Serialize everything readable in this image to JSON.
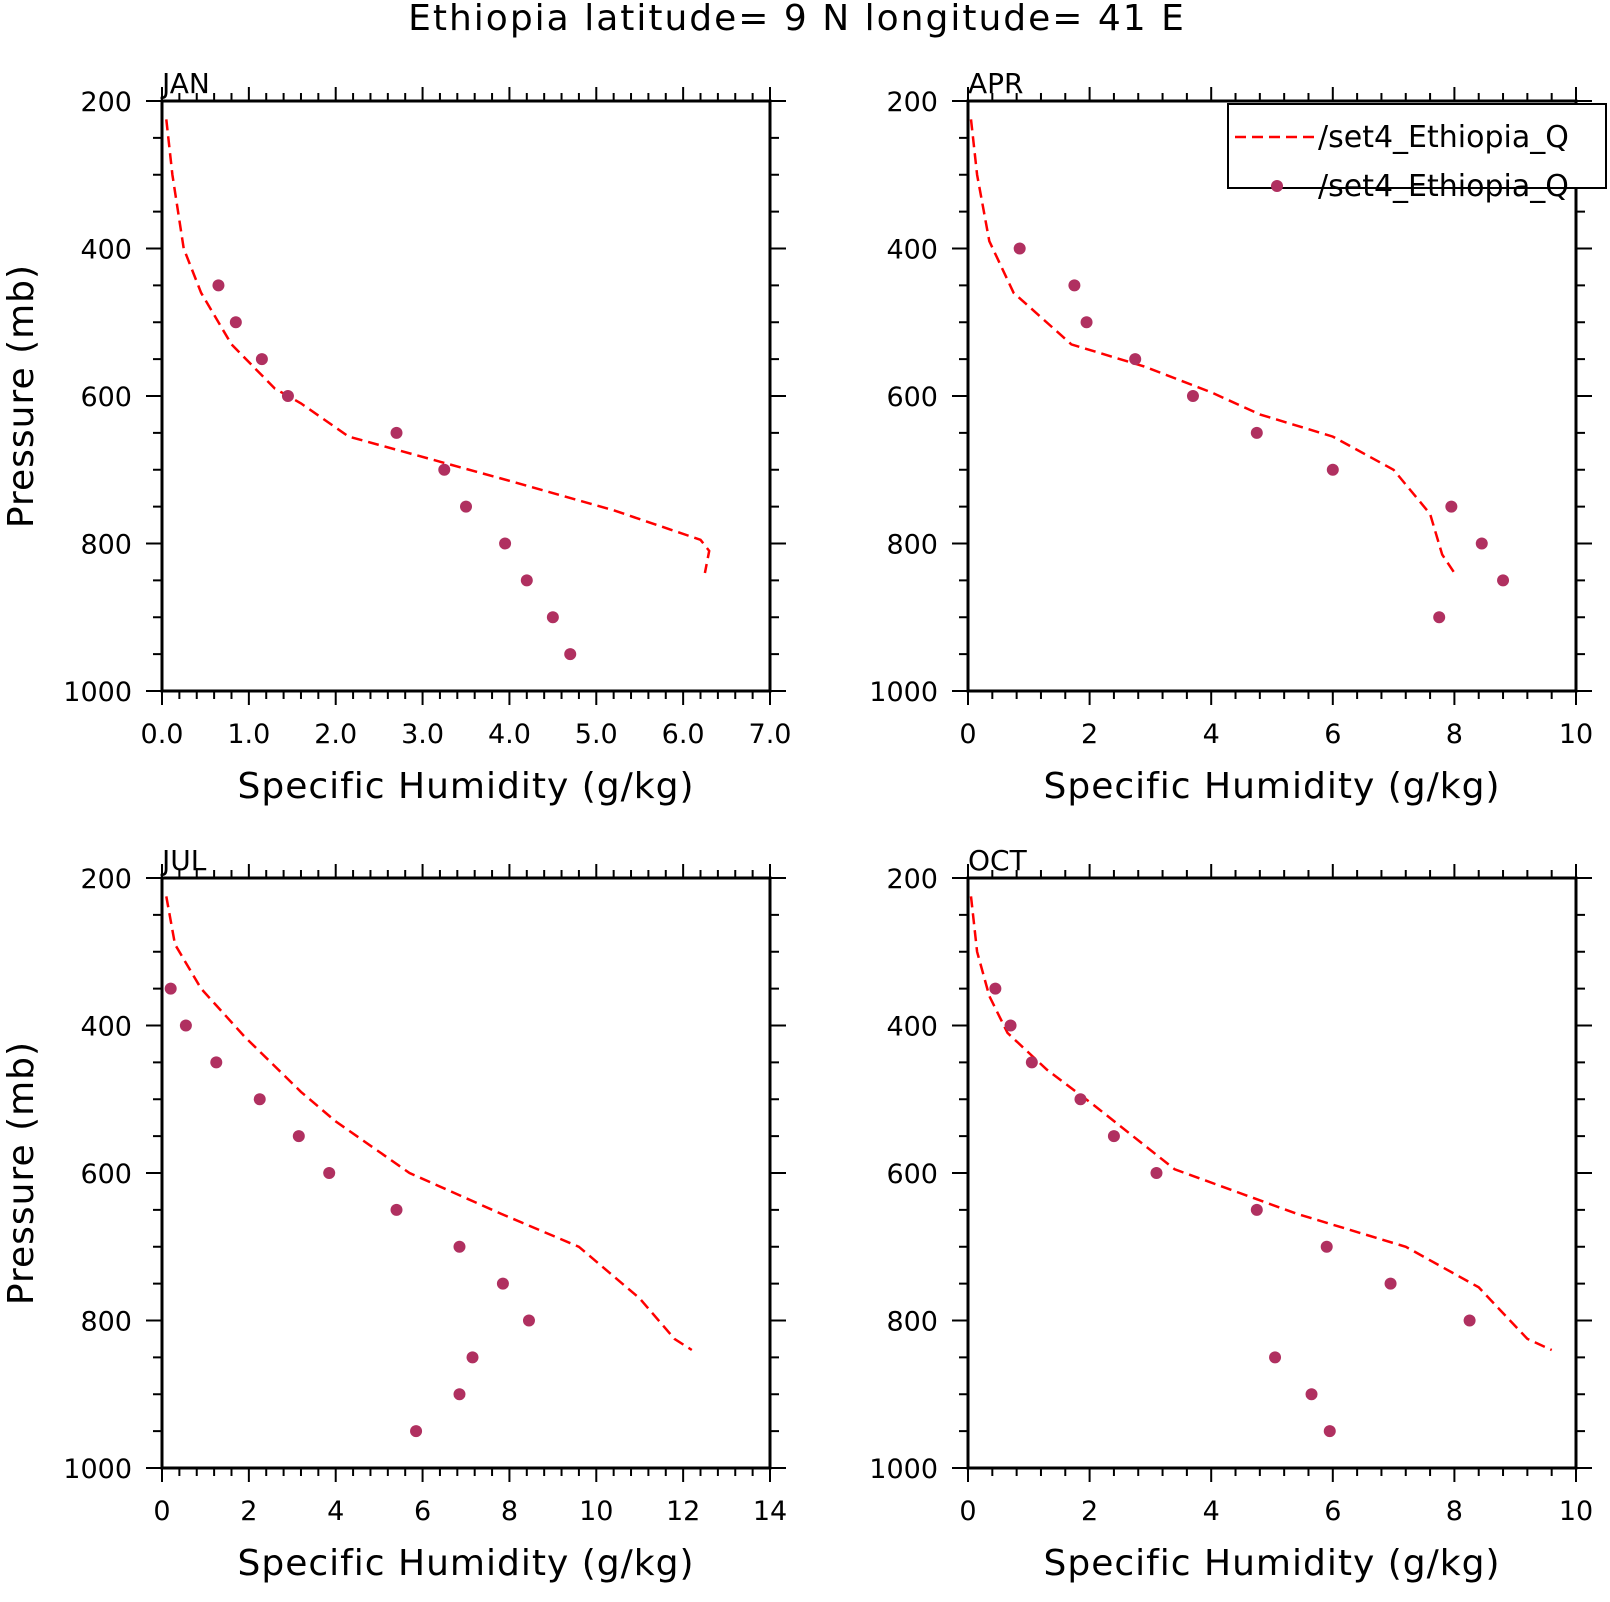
{
  "title": "Ethiopia  latitude= 9 N longitude= 41 E",
  "legend": {
    "line_label": "/set4_Ethiopia_Q",
    "dots_label": "/set4_Ethiopia_Q"
  },
  "colors": {
    "line": "#ff0000",
    "dots": "#b03060",
    "axes": "#000000"
  },
  "chart_data": [
    {
      "type": "line",
      "panel": "JAN",
      "xlabel": "Specific Humidity (g/kg)",
      "ylabel": "Pressure (mb)",
      "xlim": [
        0,
        7
      ],
      "ylim": [
        1000,
        200
      ],
      "xticks": [
        "0.0",
        "1.0",
        "2.0",
        "3.0",
        "4.0",
        "5.0",
        "6.0",
        "7.0"
      ],
      "yticks": [
        "200",
        "400",
        "600",
        "800",
        "1000"
      ],
      "xtick_values": [
        0,
        1,
        2,
        3,
        4,
        5,
        6,
        7
      ],
      "ytick_values": [
        200,
        400,
        600,
        800,
        1000
      ],
      "series": [
        {
          "style": "dashed-line",
          "x": [
            0.05,
            0.12,
            0.25,
            0.45,
            0.8,
            1.3,
            1.6,
            2.15,
            4.0,
            5.2,
            6.2,
            6.3,
            6.25
          ],
          "y": [
            225,
            300,
            400,
            460,
            530,
            590,
            610,
            655,
            715,
            755,
            795,
            810,
            840
          ]
        },
        {
          "style": "dots",
          "x": [
            0.65,
            0.85,
            1.15,
            1.45,
            2.7,
            3.25,
            3.5,
            3.95,
            4.2,
            4.5,
            4.7
          ],
          "y": [
            450,
            500,
            550,
            600,
            650,
            700,
            750,
            800,
            850,
            900,
            950
          ]
        }
      ]
    },
    {
      "type": "line",
      "panel": "APR",
      "xlabel": "Specific Humidity (g/kg)",
      "ylabel": "",
      "xlim": [
        0,
        10
      ],
      "ylim": [
        1000,
        200
      ],
      "xticks": [
        "0",
        "2",
        "4",
        "6",
        "8",
        "10"
      ],
      "yticks": [
        "200",
        "400",
        "600",
        "800",
        "1000"
      ],
      "xtick_values": [
        0,
        2,
        4,
        6,
        8,
        10
      ],
      "ytick_values": [
        200,
        400,
        600,
        800,
        1000
      ],
      "series": [
        {
          "style": "dashed-line",
          "x": [
            0.05,
            0.15,
            0.35,
            0.75,
            1.7,
            2.9,
            4.0,
            4.8,
            6.0,
            7.0,
            7.6,
            7.8,
            8.0
          ],
          "y": [
            225,
            300,
            390,
            460,
            530,
            560,
            595,
            625,
            655,
            700,
            760,
            815,
            840
          ]
        },
        {
          "style": "dots",
          "x": [
            0.85,
            1.75,
            1.95,
            2.75,
            3.7,
            4.75,
            6.0,
            7.95,
            8.45,
            8.8,
            7.75
          ],
          "y": [
            400,
            450,
            500,
            550,
            600,
            650,
            700,
            750,
            800,
            850,
            900
          ]
        }
      ]
    },
    {
      "type": "line",
      "panel": "JUL",
      "xlabel": "Specific Humidity (g/kg)",
      "ylabel": "Pressure (mb)",
      "xlim": [
        0,
        14
      ],
      "ylim": [
        1000,
        200
      ],
      "xticks": [
        "0",
        "2",
        "4",
        "6",
        "8",
        "10",
        "12",
        "14"
      ],
      "yticks": [
        "200",
        "400",
        "600",
        "800",
        "1000"
      ],
      "xtick_values": [
        0,
        2,
        4,
        6,
        8,
        10,
        12,
        14
      ],
      "ytick_values": [
        200,
        400,
        600,
        800,
        1000
      ],
      "series": [
        {
          "style": "dashed-line",
          "x": [
            0.1,
            0.3,
            0.9,
            1.9,
            3.2,
            4.0,
            5.7,
            7.8,
            9.6,
            11.0,
            11.8,
            12.2
          ],
          "y": [
            225,
            290,
            350,
            415,
            490,
            530,
            600,
            655,
            700,
            770,
            825,
            840
          ]
        },
        {
          "style": "dots",
          "x": [
            0.2,
            0.55,
            1.25,
            2.25,
            3.15,
            3.85,
            5.4,
            6.85,
            7.85,
            8.45,
            7.15,
            6.85,
            5.85
          ],
          "y": [
            350,
            400,
            450,
            500,
            550,
            600,
            650,
            700,
            750,
            800,
            850,
            900,
            950
          ]
        }
      ]
    },
    {
      "type": "line",
      "panel": "OCT",
      "xlabel": "Specific Humidity (g/kg)",
      "ylabel": "",
      "xlim": [
        0,
        10
      ],
      "ylim": [
        1000,
        200
      ],
      "xticks": [
        "0",
        "2",
        "4",
        "6",
        "8",
        "10"
      ],
      "yticks": [
        "200",
        "400",
        "600",
        "800",
        "1000"
      ],
      "xtick_values": [
        0,
        2,
        4,
        6,
        8,
        10
      ],
      "ytick_values": [
        200,
        400,
        600,
        800,
        1000
      ],
      "series": [
        {
          "style": "dashed-line",
          "x": [
            0.05,
            0.15,
            0.35,
            0.65,
            1.3,
            2.1,
            3.4,
            5.4,
            7.2,
            8.4,
            9.2,
            9.6
          ],
          "y": [
            225,
            300,
            360,
            410,
            460,
            510,
            595,
            655,
            700,
            755,
            825,
            840
          ]
        },
        {
          "style": "dots",
          "x": [
            0.45,
            0.7,
            1.05,
            1.85,
            2.4,
            3.1,
            4.75,
            5.9,
            6.95,
            8.25,
            5.05,
            5.65,
            5.95
          ],
          "y": [
            350,
            400,
            450,
            500,
            550,
            600,
            650,
            700,
            750,
            800,
            850,
            900,
            950
          ]
        }
      ]
    }
  ]
}
